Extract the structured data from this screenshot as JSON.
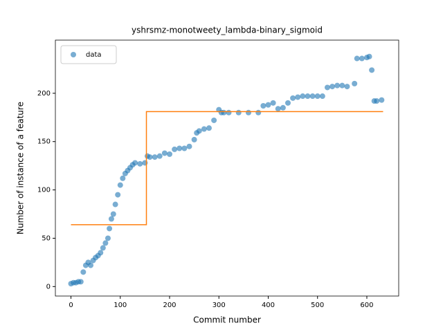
{
  "chart_data": {
    "type": "scatter",
    "title": "yshrsmz-monotweety_lambda-binary_sigmoid",
    "xlabel": "Commit number",
    "ylabel": "Number of instance of a feature",
    "xlim": [
      -31.6,
      664.6
    ],
    "ylim": [
      -9.8,
      255
    ],
    "xticks": [
      0,
      100,
      200,
      300,
      400,
      500,
      600
    ],
    "yticks": [
      0,
      50,
      100,
      150,
      200
    ],
    "legend": "upper left",
    "series": [
      {
        "name": "data",
        "type": "scatter",
        "color": "#1f77b4",
        "x": [
          0,
          5,
          10,
          15,
          20,
          25,
          30,
          35,
          40,
          45,
          50,
          55,
          60,
          65,
          70,
          75,
          78,
          82,
          86,
          90,
          95,
          100,
          105,
          110,
          115,
          120,
          125,
          130,
          140,
          150,
          155,
          160,
          170,
          180,
          190,
          200,
          210,
          220,
          230,
          240,
          250,
          255,
          260,
          270,
          280,
          290,
          300,
          305,
          310,
          320,
          340,
          360,
          380,
          390,
          400,
          410,
          420,
          430,
          440,
          450,
          460,
          470,
          480,
          490,
          500,
          510,
          520,
          530,
          540,
          550,
          560,
          575,
          580,
          590,
          600,
          605,
          610,
          615,
          620,
          630
        ],
        "values": [
          3,
          4,
          4,
          5,
          5,
          15,
          22,
          25,
          22,
          27,
          30,
          32,
          35,
          40,
          45,
          50,
          60,
          70,
          75,
          85,
          95,
          105,
          112,
          117,
          120,
          123,
          126,
          128,
          127,
          128,
          135,
          134,
          134,
          135,
          138,
          137,
          142,
          143,
          143,
          145,
          152,
          159,
          161,
          163,
          164,
          172,
          183,
          180,
          180,
          180,
          180,
          180,
          180,
          187,
          188,
          190,
          184,
          185,
          190,
          195,
          196,
          197,
          197,
          197,
          197,
          197,
          206,
          207,
          208,
          208,
          207,
          210,
          236,
          236,
          237,
          238,
          224,
          192,
          192,
          193
        ]
      },
      {
        "type": "line",
        "color": "#ff7f0e",
        "x": [
          0,
          153,
          153,
          633
        ],
        "values": [
          64,
          64,
          181,
          181
        ]
      }
    ]
  }
}
